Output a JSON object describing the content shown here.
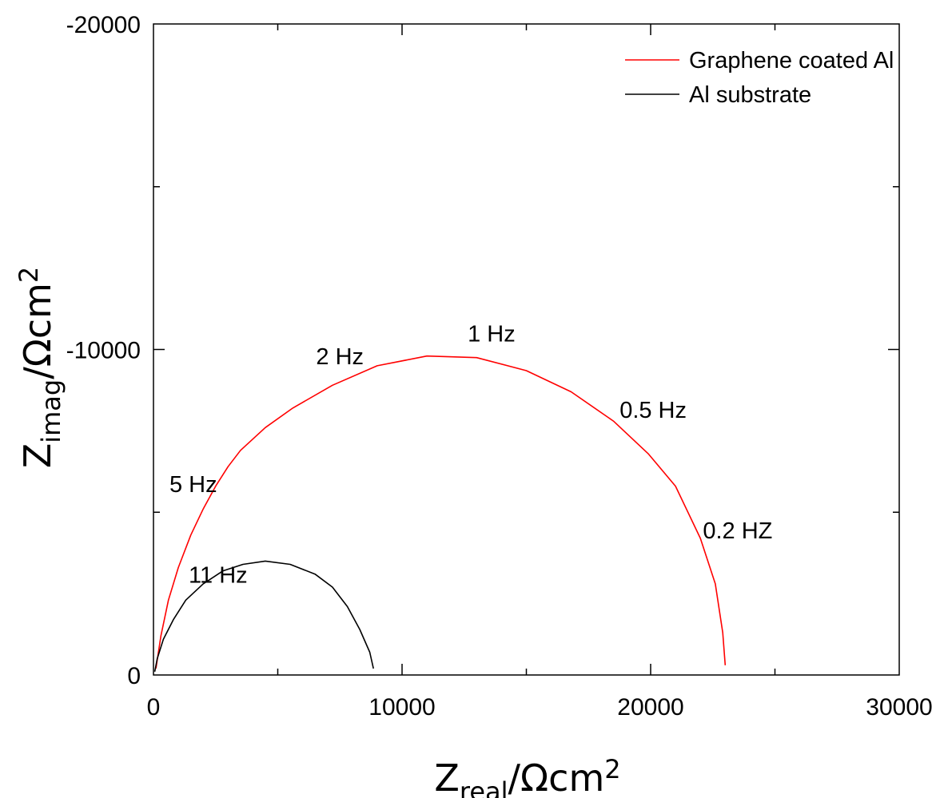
{
  "chart_data": {
    "type": "line",
    "title": "",
    "xlabel": {
      "main": "Z",
      "sub": "real",
      "unit": "/Ωcm",
      "sup": "2"
    },
    "ylabel": {
      "main": "Z",
      "sub": "imag",
      "unit": "/Ωcm",
      "sup": "2"
    },
    "xlim": [
      0,
      30000
    ],
    "ylim": [
      0,
      -20000
    ],
    "x_ticks": [
      0,
      10000,
      20000,
      30000
    ],
    "x_tick_labels": [
      "0",
      "10000",
      "20000",
      "30000"
    ],
    "y_ticks": [
      0,
      -10000,
      -20000
    ],
    "y_tick_labels": [
      "0",
      "-10000",
      "-20000"
    ],
    "grid": false,
    "legend_position": "top-right",
    "series": [
      {
        "name": "Graphene coated Al",
        "color": "#ff0000",
        "x": [
          100,
          300,
          600,
          1000,
          1500,
          2000,
          2500,
          3000,
          3500,
          4500,
          5600,
          7200,
          9000,
          11000,
          13000,
          15000,
          16800,
          18500,
          19900,
          21000,
          22000,
          22600,
          22900,
          23000
        ],
        "y": [
          -200,
          -1200,
          -2300,
          -3300,
          -4300,
          -5100,
          -5800,
          -6400,
          -6900,
          -7600,
          -8200,
          -8900,
          -9500,
          -9800,
          -9750,
          -9350,
          -8700,
          -7800,
          -6800,
          -5800,
          -4200,
          -2800,
          -1300,
          -300
        ]
      },
      {
        "name": "Al substrate",
        "color": "#000000",
        "x": [
          50,
          150,
          400,
          800,
          1300,
          2000,
          2800,
          3600,
          4500,
          5500,
          6500,
          7200,
          7800,
          8300,
          8700,
          8850
        ],
        "y": [
          -100,
          -500,
          -1100,
          -1700,
          -2300,
          -2800,
          -3200,
          -3400,
          -3500,
          -3400,
          -3100,
          -2700,
          -2100,
          -1400,
          -700,
          -200
        ]
      }
    ],
    "annotations": [
      {
        "text": "1 Hz",
        "x": 13600,
        "y": -10250
      },
      {
        "text": "2 Hz",
        "x": 7500,
        "y": -9550
      },
      {
        "text": "0.5 Hz",
        "x": 20100,
        "y": -7900
      },
      {
        "text": "5 Hz",
        "x": 1600,
        "y": -5620
      },
      {
        "text": "0.2 HZ",
        "x": 23500,
        "y": -4200
      },
      {
        "text": "11 Hz",
        "x": 2600,
        "y": -2830
      }
    ]
  }
}
